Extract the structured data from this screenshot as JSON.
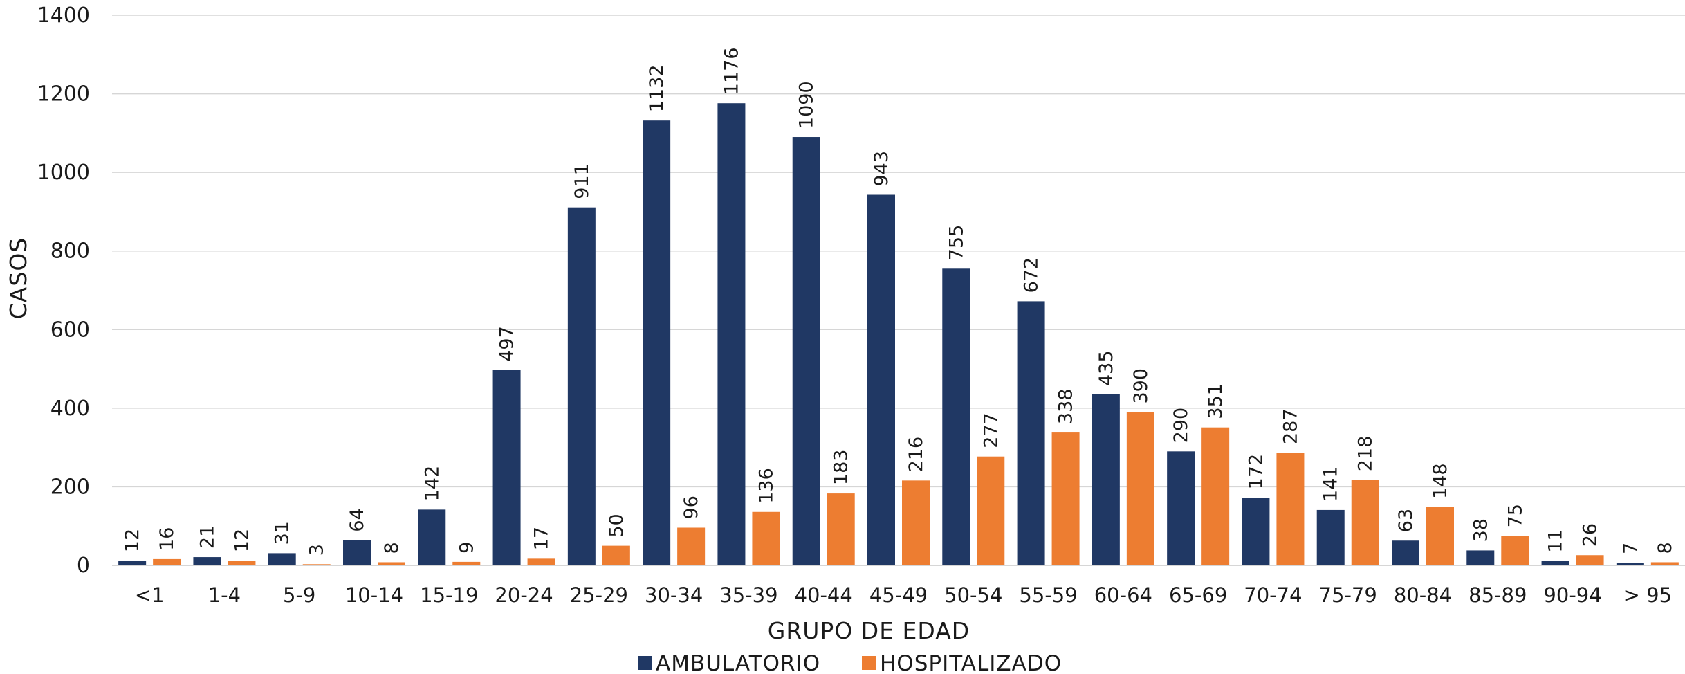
{
  "chart_data": {
    "type": "bar",
    "title": "",
    "xlabel": "GRUPO DE EDAD",
    "ylabel": "CASOS",
    "ylim": [
      0,
      1400
    ],
    "yticks": [
      0,
      200,
      400,
      600,
      800,
      1000,
      1200,
      1400
    ],
    "grid": true,
    "legend_position": "bottom",
    "categories": [
      "<1",
      "1-4",
      "5-9",
      "10-14",
      "15-19",
      "20-24",
      "25-29",
      "30-34",
      "35-39",
      "40-44",
      "45-49",
      "50-54",
      "55-59",
      "60-64",
      "65-69",
      "70-74",
      "75-79",
      "80-84",
      "85-89",
      "90-94",
      "> 95"
    ],
    "series": [
      {
        "name": "AMBULATORIO",
        "color": "#203864",
        "values": [
          12,
          21,
          31,
          64,
          142,
          497,
          911,
          1132,
          1176,
          1090,
          943,
          755,
          672,
          435,
          290,
          172,
          141,
          63,
          38,
          11,
          7
        ]
      },
      {
        "name": "HOSPITALIZADO",
        "color": "#ED7D31",
        "values": [
          16,
          12,
          3,
          8,
          9,
          17,
          50,
          96,
          136,
          183,
          216,
          277,
          338,
          390,
          351,
          287,
          218,
          148,
          75,
          26,
          8
        ]
      }
    ]
  }
}
